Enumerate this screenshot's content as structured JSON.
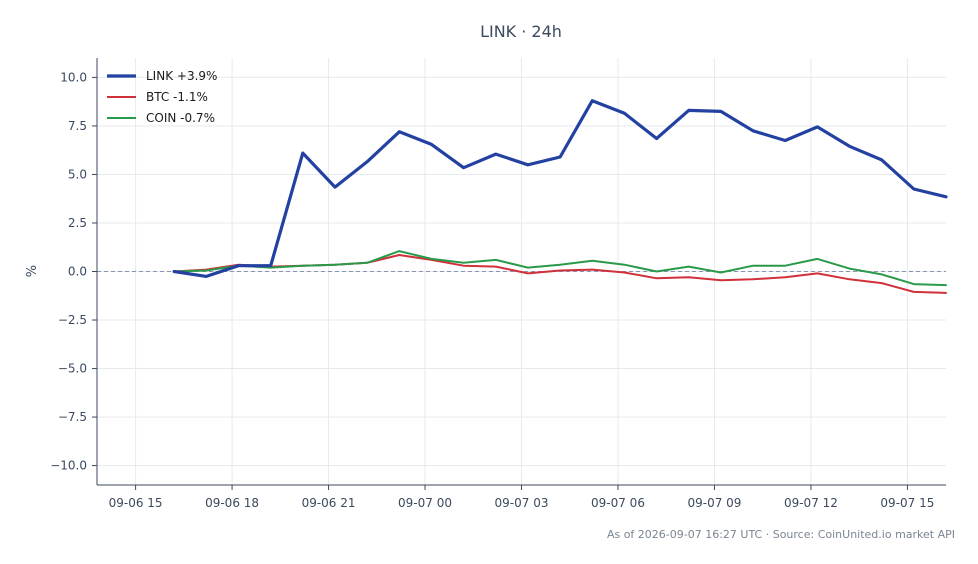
{
  "chart_data": {
    "type": "line",
    "title": "LINK · 24h",
    "ylabel": "%",
    "xlabel": "",
    "ylim": [
      -11,
      11
    ],
    "yticks": [
      -10,
      -7.5,
      -5,
      -2.5,
      0,
      2.5,
      5,
      7.5,
      10
    ],
    "ytick_labels": [
      "−10.0",
      "−7.5",
      "−5.0",
      "−2.5",
      "0.0",
      "2.5",
      "5.0",
      "7.5",
      "10.0"
    ],
    "xlim_hours": [
      -1.2,
      25.2
    ],
    "xticks": [
      {
        "h": 0,
        "label": "09-06 15"
      },
      {
        "h": 3,
        "label": "09-06 18"
      },
      {
        "h": 6,
        "label": "09-06 21"
      },
      {
        "h": 9,
        "label": "09-07 00"
      },
      {
        "h": 12,
        "label": "09-07 03"
      },
      {
        "h": 15,
        "label": "09-07 06"
      },
      {
        "h": 18,
        "label": "09-07 09"
      },
      {
        "h": 21,
        "label": "09-07 12"
      },
      {
        "h": 24,
        "label": "09-07 15"
      }
    ],
    "x_hours": [
      1.2,
      2.2,
      3.2,
      4.2,
      5.2,
      6.2,
      7.2,
      8.2,
      9.2,
      10.2,
      11.2,
      12.2,
      13.2,
      14.2,
      15.2,
      16.2,
      17.2,
      18.2,
      19.2,
      20.2,
      21.2,
      22.2,
      23.2,
      24.2,
      25.2
    ],
    "series": [
      {
        "name": "LINK +3.9%",
        "color": "#2341a0",
        "width": 3.2,
        "values": [
          0.0,
          -0.25,
          0.3,
          0.3,
          6.1,
          4.35,
          5.65,
          7.2,
          6.55,
          5.35,
          6.05,
          5.5,
          5.9,
          8.8,
          8.15,
          6.85,
          8.3,
          8.25,
          7.25,
          6.75,
          7.45,
          6.45,
          5.75,
          4.25,
          3.85
        ]
      },
      {
        "name": "BTC -1.1%",
        "color": "#d0303a",
        "width": 2,
        "values": [
          0.0,
          0.1,
          0.35,
          0.25,
          0.3,
          0.35,
          0.45,
          0.85,
          0.6,
          0.3,
          0.25,
          -0.1,
          0.05,
          0.1,
          -0.05,
          -0.35,
          -0.3,
          -0.45,
          -0.4,
          -0.3,
          -0.1,
          -0.4,
          -0.6,
          -1.05,
          -1.1
        ]
      },
      {
        "name": "COIN -0.7%",
        "color": "#2a9a4a",
        "width": 2,
        "values": [
          0.0,
          0.05,
          0.3,
          0.2,
          0.3,
          0.35,
          0.45,
          1.05,
          0.65,
          0.45,
          0.6,
          0.2,
          0.35,
          0.55,
          0.35,
          0.0,
          0.25,
          -0.05,
          0.3,
          0.3,
          0.65,
          0.15,
          -0.15,
          -0.65,
          -0.7
        ]
      }
    ],
    "grid": true,
    "legend_position": "top-left",
    "footer": "As of 2026-09-07 16:27 UTC · Source: CoinUnited.io market API"
  }
}
